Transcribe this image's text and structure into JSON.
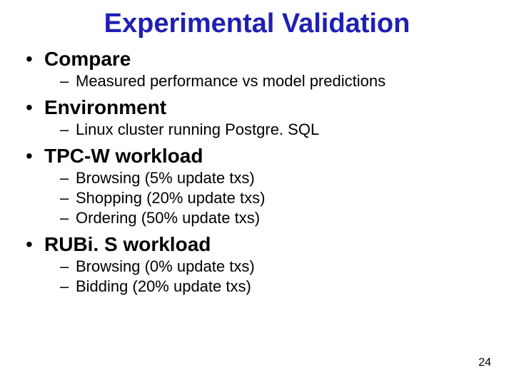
{
  "title": {
    "text": "Experimental Validation",
    "color": "#1f1fb5",
    "fontsize": 38
  },
  "bullets": {
    "l1_fontsize": 28,
    "l2_fontsize": 22,
    "bullet_char": "•",
    "dash_char": "–",
    "items": [
      {
        "label": "Compare",
        "children": [
          {
            "label": "Measured performance vs model predictions"
          }
        ]
      },
      {
        "label": "Environment",
        "children": [
          {
            "label": "Linux cluster running Postgre. SQL"
          }
        ]
      },
      {
        "label": "TPC-W workload",
        "children": [
          {
            "label": "Browsing (5% update txs)"
          },
          {
            "label": "Shopping (20% update txs)"
          },
          {
            "label": "Ordering (50% update txs)"
          }
        ]
      },
      {
        "label": "RUBi. S workload",
        "children": [
          {
            "label": "Browsing (0% update txs)"
          },
          {
            "label": "Bidding (20% update txs)"
          }
        ]
      }
    ]
  },
  "page_number": {
    "text": "24",
    "fontsize": 16
  }
}
